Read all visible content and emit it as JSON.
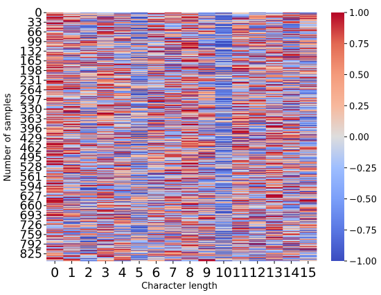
{
  "chart_data": {
    "type": "heatmap",
    "title": "",
    "xlabel": "Character length",
    "ylabel": "Number of samples",
    "x_categories": [
      "0",
      "1",
      "2",
      "3",
      "4",
      "5",
      "6",
      "7",
      "8",
      "9",
      "10",
      "11",
      "12",
      "13",
      "14",
      "15"
    ],
    "y_tick_labels": [
      "0",
      "33",
      "66",
      "99",
      "132",
      "165",
      "198",
      "231",
      "264",
      "297",
      "330",
      "363",
      "396",
      "429",
      "462",
      "495",
      "528",
      "561",
      "594",
      "627",
      "660",
      "693",
      "726",
      "759",
      "792",
      "825"
    ],
    "n_rows": 850,
    "n_cols": 16,
    "colormap": "coolwarm",
    "vmin": -1.0,
    "vmax": 1.0,
    "colorbar_ticks": [
      "1.00",
      "0.75",
      "0.50",
      "0.25",
      "0.00",
      "−0.25",
      "−0.50",
      "−0.75",
      "−1.00"
    ],
    "column_mean_estimates": [
      0.45,
      0.15,
      -0.05,
      0.25,
      0.05,
      -0.35,
      0.05,
      0.15,
      0.35,
      0.05,
      -0.55,
      0.25,
      0.05,
      0.25,
      0.05,
      0.05
    ],
    "colors": {
      "cold": "#3b4cc0",
      "neutral": "#dddddd",
      "hot": "#b40426"
    }
  }
}
